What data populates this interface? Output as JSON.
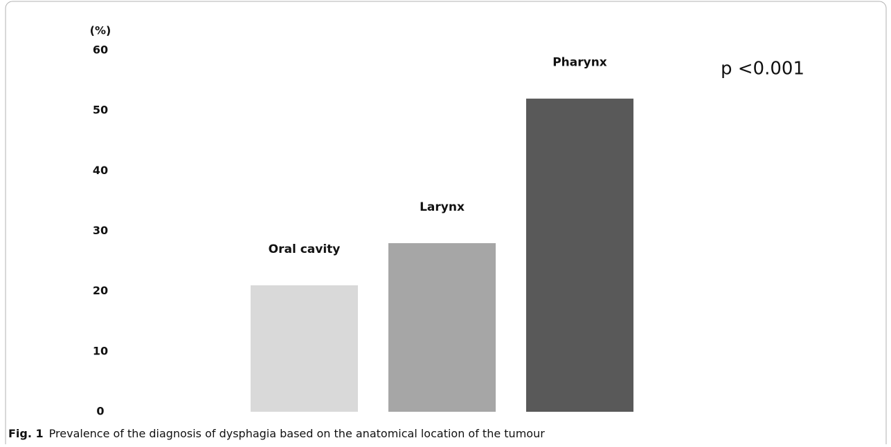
{
  "chart_data": {
    "type": "bar",
    "y_label": "(%)",
    "categories": [
      "Oral cavity",
      "Larynx",
      "Pharynx"
    ],
    "values": [
      21,
      28,
      52
    ],
    "colors": [
      "#d9d9d9",
      "#a6a6a6",
      "#595959"
    ],
    "ylim": [
      0,
      60
    ],
    "yticks": [
      0,
      10,
      20,
      30,
      40,
      50,
      60
    ],
    "grid": false,
    "annotation": "p <0.001"
  },
  "caption": {
    "label": "Fig. 1",
    "text": "Prevalence of the diagnosis of dysphagia based on the anatomical location of the tumour"
  }
}
